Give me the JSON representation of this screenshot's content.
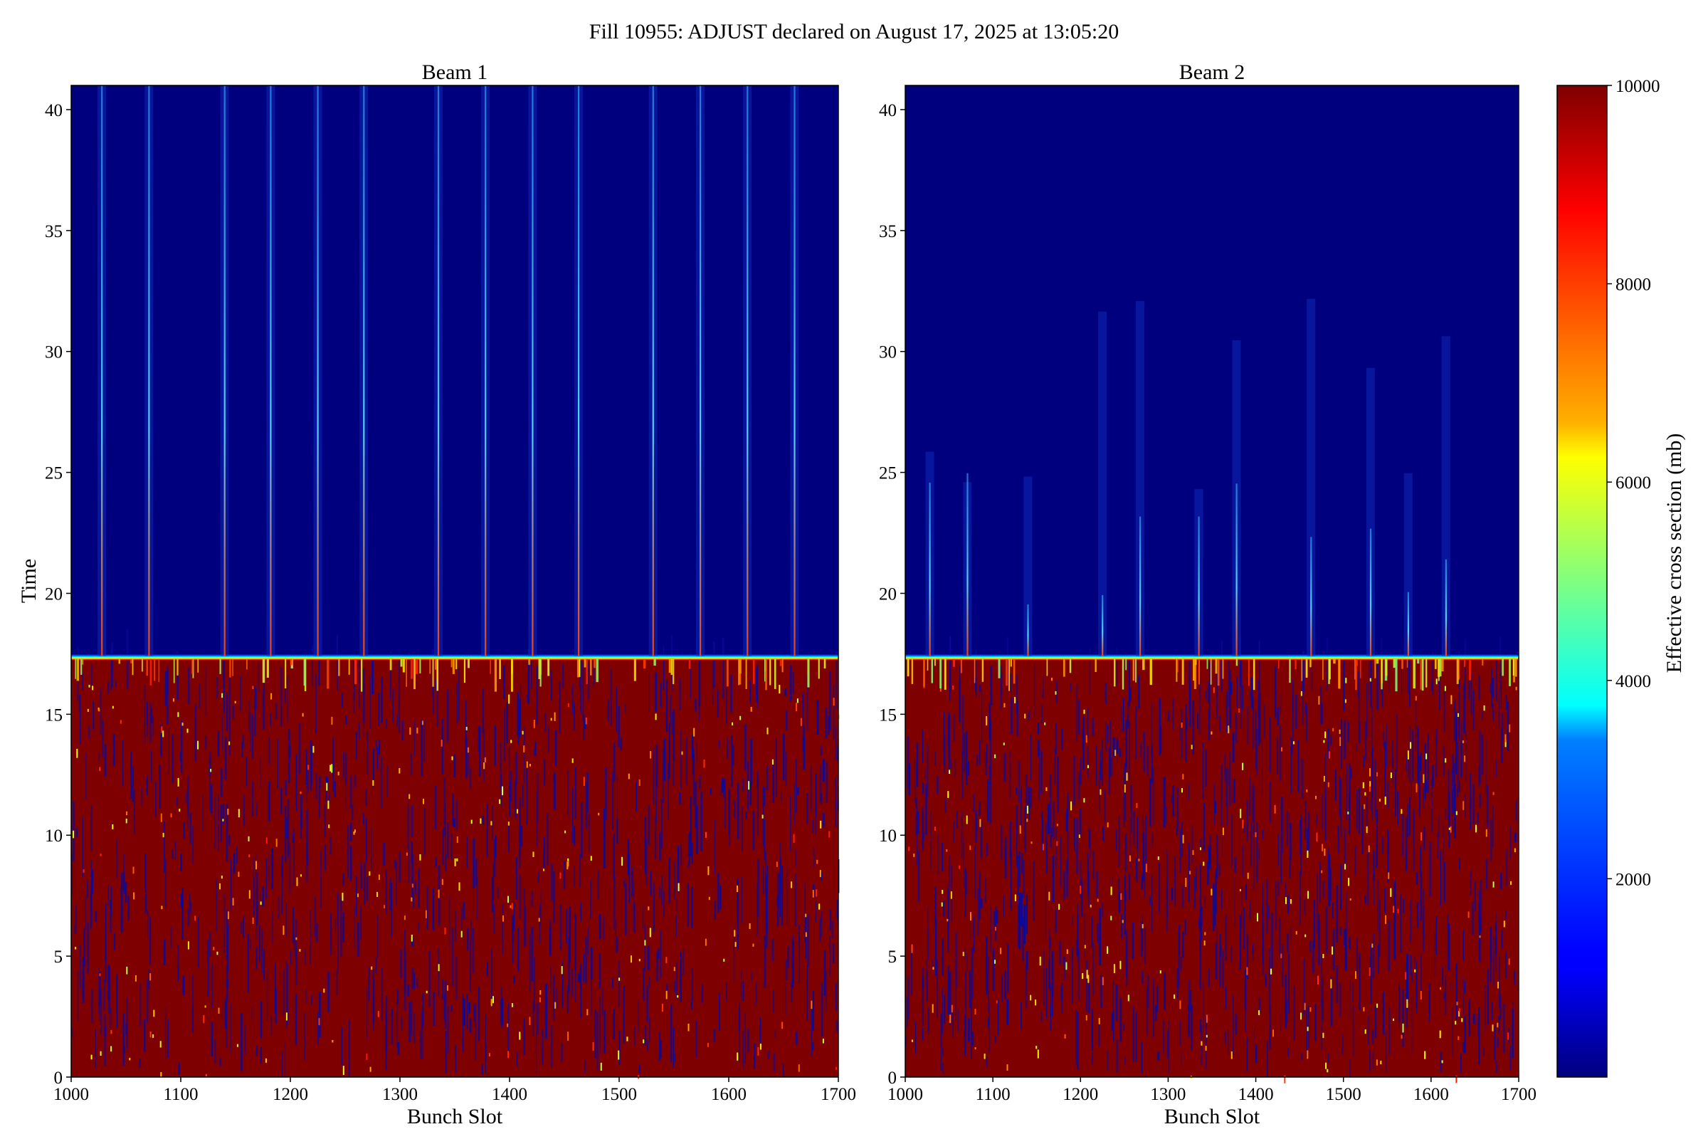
{
  "figure": {
    "title": "Fill 10955: ADJUST declared on August 17, 2025 at 13:05:20"
  },
  "chart_data": [
    {
      "type": "heatmap",
      "title": "Beam 1",
      "xlabel": "Bunch Slot",
      "ylabel": "Time",
      "xlim": [
        1000,
        1700
      ],
      "ylim": [
        0,
        41
      ],
      "x_ticks": [
        1000,
        1100,
        1200,
        1300,
        1400,
        1500,
        1600,
        1700
      ],
      "y_ticks": [
        0,
        5,
        10,
        15,
        20,
        25,
        30,
        35,
        40
      ],
      "transition_time": 17.4,
      "value_before_transition": 10000,
      "value_after_transition": 0,
      "bright_streak_slots": [
        1028,
        1071,
        1140,
        1182,
        1225,
        1267,
        1335,
        1378,
        1421,
        1463,
        1531,
        1574,
        1617,
        1660
      ]
    },
    {
      "type": "heatmap",
      "title": "Beam 2",
      "xlabel": "Bunch Slot",
      "ylabel": "",
      "xlim": [
        1000,
        1700
      ],
      "ylim": [
        0,
        41
      ],
      "x_ticks": [
        1000,
        1100,
        1200,
        1300,
        1400,
        1500,
        1600,
        1700
      ],
      "y_ticks": [
        0,
        5,
        10,
        15,
        20,
        25,
        30,
        35,
        40
      ],
      "transition_time": 17.4,
      "value_before_transition": 10000,
      "value_after_transition": 0,
      "bright_streak_slots": [
        1028,
        1071,
        1140,
        1225,
        1268,
        1335,
        1378,
        1463,
        1531,
        1574,
        1617
      ]
    }
  ],
  "colorbar": {
    "label": "Effective cross section (mb)",
    "colormap": "jet",
    "range": [
      0,
      10000
    ],
    "ticks": [
      2000,
      4000,
      6000,
      8000,
      10000
    ],
    "colors": [
      "#00007f",
      "#0000ff",
      "#00ffff",
      "#ffff00",
      "#ff0000",
      "#7f0000"
    ]
  }
}
